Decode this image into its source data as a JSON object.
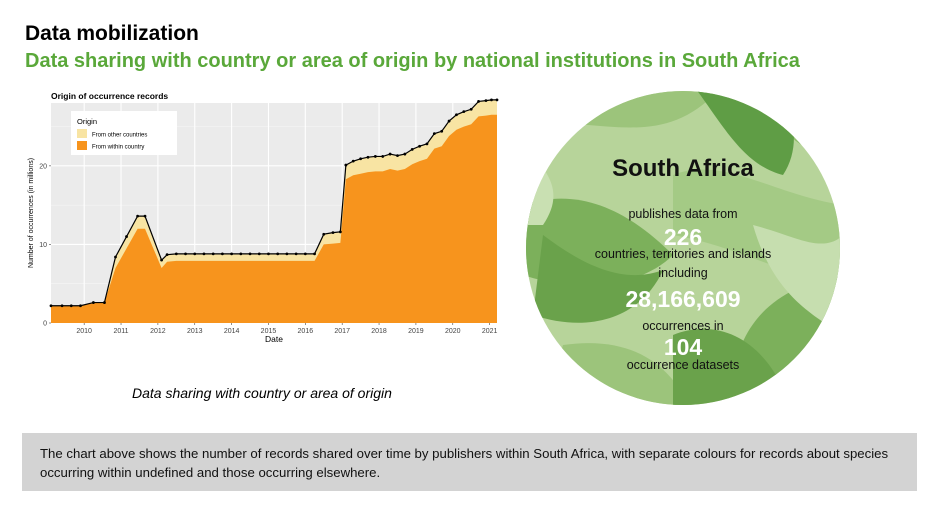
{
  "header": {
    "title": "Data mobilization",
    "subtitle": "Data sharing with country or area of origin by national institutions in South Africa"
  },
  "chart_data": {
    "type": "area",
    "title": "Origin of occurrence records",
    "xlabel": "Date",
    "ylabel": "Number of occurrences (in millions)",
    "xlim": [
      2009.1,
      2021.2
    ],
    "ylim": [
      0,
      28
    ],
    "x_ticks": [
      2010,
      2011,
      2012,
      2013,
      2014,
      2015,
      2016,
      2017,
      2018,
      2019,
      2020,
      2021
    ],
    "y_ticks": [
      0,
      10,
      20
    ],
    "grid": true,
    "legend": {
      "title": "Origin",
      "position": "top-left"
    },
    "x": [
      2009.1,
      2009.4,
      2009.65,
      2009.9,
      2010.25,
      2010.55,
      2010.85,
      2011.15,
      2011.45,
      2011.65,
      2012.1,
      2012.25,
      2012.5,
      2012.75,
      2013.0,
      2013.25,
      2013.5,
      2013.75,
      2014.0,
      2014.25,
      2014.5,
      2014.75,
      2015.0,
      2015.25,
      2015.5,
      2015.75,
      2016.0,
      2016.25,
      2016.5,
      2016.75,
      2016.95,
      2017.1,
      2017.3,
      2017.5,
      2017.7,
      2017.9,
      2018.1,
      2018.3,
      2018.5,
      2018.7,
      2018.9,
      2019.1,
      2019.3,
      2019.5,
      2019.7,
      2019.9,
      2020.1,
      2020.3,
      2020.5,
      2020.7,
      2020.9,
      2021.05,
      2021.2
    ],
    "series": [
      {
        "name": "From within country",
        "color": "#f7941d",
        "values": [
          2.2,
          2.2,
          2.2,
          2.2,
          2.6,
          2.6,
          7.0,
          9.5,
          12.0,
          12.0,
          7.0,
          7.8,
          7.9,
          7.9,
          7.9,
          7.9,
          7.9,
          7.9,
          7.9,
          7.9,
          7.9,
          7.9,
          7.9,
          7.9,
          7.9,
          7.9,
          7.9,
          7.9,
          10.0,
          10.1,
          10.2,
          18.3,
          18.8,
          19.0,
          19.2,
          19.3,
          19.3,
          19.6,
          19.4,
          19.6,
          20.2,
          20.6,
          20.9,
          22.2,
          22.5,
          23.8,
          24.6,
          25.0,
          25.3,
          26.3,
          26.4,
          26.5,
          26.5
        ]
      },
      {
        "name": "From other countries",
        "color": "#f8e4a3",
        "values": [
          0.0,
          0.0,
          0.0,
          0.0,
          0.0,
          0.0,
          1.4,
          1.5,
          1.6,
          1.6,
          1.0,
          0.9,
          0.9,
          0.9,
          0.9,
          0.9,
          0.9,
          0.9,
          0.9,
          0.9,
          0.9,
          0.9,
          0.9,
          0.9,
          0.9,
          0.9,
          0.9,
          0.9,
          1.3,
          1.4,
          1.4,
          1.8,
          1.8,
          1.9,
          1.9,
          1.9,
          1.9,
          1.9,
          1.9,
          1.9,
          1.9,
          1.9,
          1.9,
          1.9,
          1.9,
          1.9,
          1.9,
          1.9,
          1.9,
          1.9,
          1.9,
          1.9,
          1.9
        ]
      }
    ]
  },
  "chart_caption": "Data sharing with country or area of origin",
  "summary": {
    "country": "South Africa",
    "line1": "publishes data from",
    "countries_count": "226",
    "line2": "countries, territories and islands",
    "line3": "including",
    "occurrences_count": "28,166,609",
    "line4": "occurrences in",
    "datasets_count": "104",
    "line5": "occurrence datasets"
  },
  "note": "The chart above shows the number of records shared over time by publishers within South Africa, with separate colours for records about species occurring within undefined and those occurring elsewhere."
}
